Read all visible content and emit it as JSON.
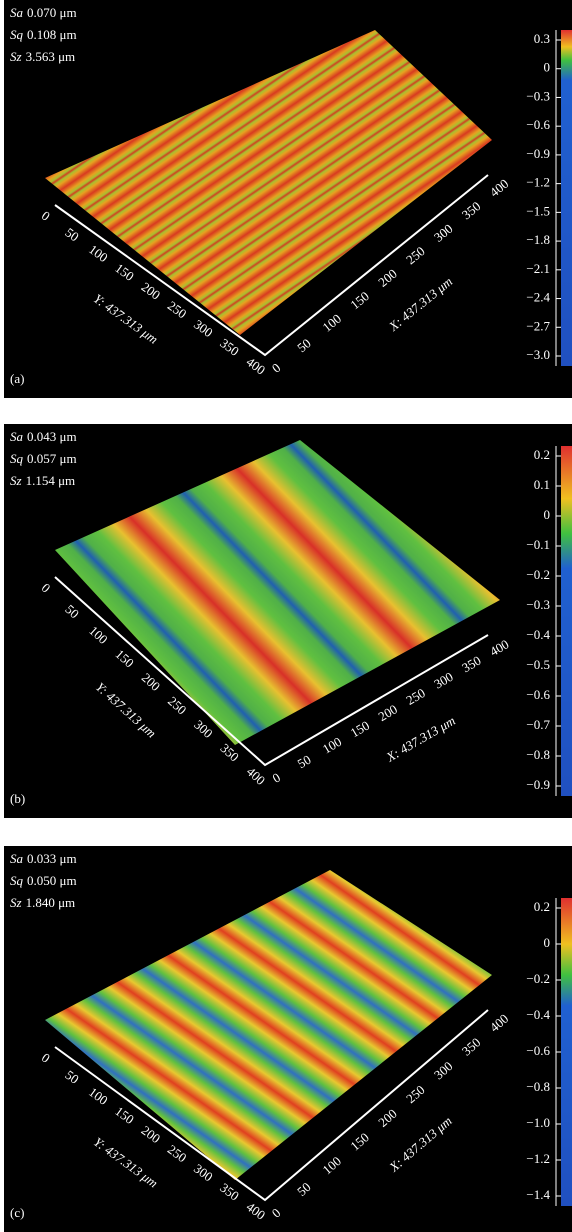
{
  "panels": [
    {
      "label": "(a)",
      "stats": [
        {
          "name": "Sa",
          "value": "0.070 μm"
        },
        {
          "name": "Sq",
          "value": "0.108 μm"
        },
        {
          "name": "Sz",
          "value": "3.563 μm"
        }
      ],
      "colorbar_ticks": [
        "0.3",
        "0",
        "−0.3",
        "−0.6",
        "−0.9",
        "−1.2",
        "−1.5",
        "−1.8",
        "−2.1",
        "−2.4",
        "−2.7",
        "−3.0"
      ],
      "y_axis": {
        "title": "Y: 437.313 μm",
        "ticks": [
          "0",
          "50",
          "100",
          "150",
          "200",
          "250",
          "300",
          "350",
          "400"
        ]
      },
      "x_axis": {
        "title": "X: 437.313 μm",
        "ticks": [
          "0",
          "50",
          "100",
          "150",
          "200",
          "250",
          "300",
          "350",
          "400"
        ]
      }
    },
    {
      "label": "(b)",
      "stats": [
        {
          "name": "Sa",
          "value": "0.043 μm"
        },
        {
          "name": "Sq",
          "value": "0.057 μm"
        },
        {
          "name": "Sz",
          "value": "1.154 μm"
        }
      ],
      "colorbar_ticks": [
        "0.2",
        "0.1",
        "0",
        "−0.1",
        "−0.2",
        "−0.3",
        "−0.4",
        "−0.5",
        "−0.6",
        "−0.7",
        "−0.8",
        "−0.9"
      ],
      "y_axis": {
        "title": "Y: 437.313 μm",
        "ticks": [
          "0",
          "50",
          "100",
          "150",
          "200",
          "250",
          "300",
          "350",
          "400"
        ]
      },
      "x_axis": {
        "title": "X: 437.313 μm",
        "ticks": [
          "0",
          "50",
          "100",
          "150",
          "200",
          "250",
          "300",
          "350",
          "400"
        ]
      }
    },
    {
      "label": "(c)",
      "stats": [
        {
          "name": "Sa",
          "value": "0.033 μm"
        },
        {
          "name": "Sq",
          "value": "0.050 μm"
        },
        {
          "name": "Sz",
          "value": "1.840 μm"
        }
      ],
      "colorbar_ticks": [
        "0.2",
        "0",
        "−0.2",
        "−0.4",
        "−0.6",
        "−0.8",
        "−1.0",
        "−1.2",
        "−1.4"
      ],
      "y_axis": {
        "title": "Y: 437.313 μm",
        "ticks": [
          "0",
          "50",
          "100",
          "150",
          "200",
          "250",
          "300",
          "350",
          "400"
        ]
      },
      "x_axis": {
        "title": "X: 437.313 μm",
        "ticks": [
          "0",
          "50",
          "100",
          "150",
          "200",
          "250",
          "300",
          "350",
          "400"
        ]
      }
    }
  ]
}
